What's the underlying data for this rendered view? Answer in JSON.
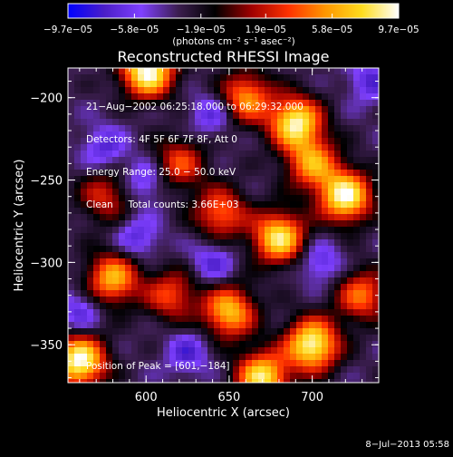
{
  "chart_data": {
    "type": "heatmap",
    "title": "Reconstructed RHESSI Image",
    "xlabel": "Heliocentric X (arcsec)",
    "ylabel": "Heliocentric Y (arcsec)",
    "xlim": [
      553,
      740
    ],
    "ylim": [
      -373,
      -182
    ],
    "x_ticks": [
      600,
      650,
      700
    ],
    "x_tick_labels": [
      "600",
      "650",
      "700"
    ],
    "y_ticks": [
      -350,
      -300,
      -250,
      -200
    ],
    "y_tick_labels": [
      "−350",
      "−300",
      "−250",
      "−200"
    ],
    "colorbar": {
      "range": [
        -9.7e-05,
        9.7e-05
      ],
      "tick_values": [
        -9.7e-05,
        -5.8e-05,
        -1.9e-05,
        1.9e-05,
        5.8e-05,
        9.7e-05
      ],
      "tick_labels": [
        "−9.7e−05",
        "−5.8e−05",
        "−1.9e−05",
        "1.9e−05",
        "5.8e−05",
        "9.7e−05"
      ],
      "units_label": "(photons cm⁻² s⁻¹ asec⁻²)",
      "colormap": [
        "#0000ff",
        "#4b1ec8",
        "#7f40ff",
        "#3c1e50",
        "#000000",
        "#a00000",
        "#ff3200",
        "#ff9600",
        "#ffdc1e",
        "#ffffff"
      ]
    },
    "annotations": [
      "21−Aug−2002 06:25:18.000 to 06:29:32.000",
      "Detectors: 4F 5F 6F 7F 8F, Att 0",
      "Energy Range: 25.0 − 50.0 keV",
      "Clean     Total counts: 3.66E+03"
    ],
    "peak_label": "Position of Peak = [601,−184]",
    "peak_position": [
      601,
      -184
    ],
    "peak_value": 9.7e-05,
    "bright_sources": [
      {
        "x": 601,
        "y": -184,
        "value": 9.7e-05
      },
      {
        "x": 690,
        "y": -215,
        "value": 8.5e-05
      },
      {
        "x": 720,
        "y": -260,
        "value": 9e-05
      },
      {
        "x": 680,
        "y": -285,
        "value": 8e-05
      },
      {
        "x": 560,
        "y": -360,
        "value": 9.5e-05
      },
      {
        "x": 700,
        "y": -350,
        "value": 9.2e-05
      },
      {
        "x": 650,
        "y": -330,
        "value": 6.5e-05
      },
      {
        "x": 670,
        "y": -370,
        "value": 8e-05
      },
      {
        "x": 580,
        "y": -310,
        "value": 6e-05
      }
    ],
    "grid": false
  },
  "footer_date": "8−Jul−2013 05:58"
}
